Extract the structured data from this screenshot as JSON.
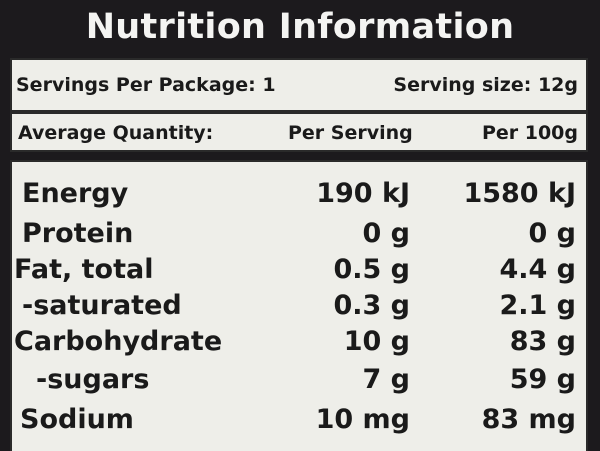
{
  "title": "Nutrition Information",
  "servings": {
    "per_package": "Servings Per Package: 1",
    "serving_size": "Serving size: 12g"
  },
  "header": {
    "label": "Average Quantity:",
    "per_serving": "Per Serving",
    "per_100g": "Per 100g"
  },
  "rows": [
    {
      "name": "Energy",
      "per_serving": "190 kJ",
      "per_100g": "1580 kJ"
    },
    {
      "name": "Protein",
      "per_serving": "0 g",
      "per_100g": "0 g"
    },
    {
      "name": "Fat, total",
      "per_serving": "0.5 g",
      "per_100g": "4.4 g"
    },
    {
      "name": "-saturated",
      "per_serving": "0.3 g",
      "per_100g": "2.1 g"
    },
    {
      "name": "Carbohydrate",
      "per_serving": "10 g",
      "per_100g": "83 g"
    },
    {
      "name": "-sugars",
      "per_serving": "7 g",
      "per_100g": "59 g"
    },
    {
      "name": "Sodium",
      "per_serving": "10 mg",
      "per_100g": "83 mg"
    }
  ]
}
